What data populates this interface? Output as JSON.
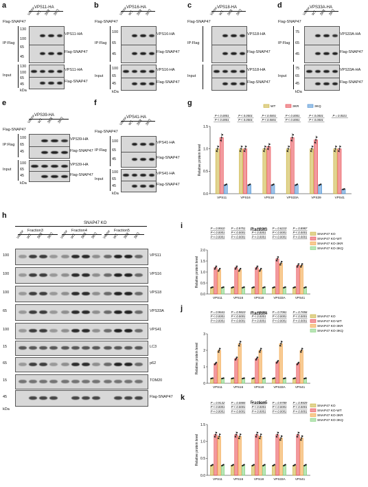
{
  "panel_a": {
    "letter": "a",
    "header": "VPS11-HA",
    "flag_row": "Flag-SNAP47",
    "lanes": [
      "Vector",
      "WT",
      "3KR",
      "3KQ"
    ],
    "ip_label": "IP:Flag",
    "input_label": "Input",
    "kda": "kDa",
    "mw": [
      "130",
      "100",
      "65",
      "45",
      "130",
      "100",
      "65",
      "45"
    ],
    "bands": [
      "VPS11-HA",
      "Flag-SNAP47",
      "VPS11-HA",
      "Flag-SNAP47"
    ]
  },
  "panel_b": {
    "letter": "b",
    "header": "VPS16-HA",
    "flag_row": "Flag-SNAP47",
    "lanes": [
      "Vector",
      "WT",
      "3KR",
      "3KQ"
    ],
    "ip_label": "IP:Flag",
    "input_label": "Input",
    "kda": "kDa",
    "mw": [
      "100",
      "65",
      "45",
      "100",
      "65",
      "45"
    ],
    "bands": [
      "VPS16-HA",
      "Flag-SNAP47",
      "VPS16-HA",
      "Flag-SNAP47"
    ]
  },
  "panel_c": {
    "letter": "c",
    "header": "VPS18-HA",
    "flag_row": "Flag-SNAP47",
    "lanes": [
      "Vector",
      "WT",
      "3KR",
      "3KQ"
    ],
    "ip_label": "IP:Flag",
    "input_label": "Input",
    "bands": [
      "VPS18-HA",
      "Flag-SNAP47",
      "VPS18-HA",
      "Flag-SNAP47"
    ]
  },
  "panel_d": {
    "letter": "d",
    "header": "VPS33A-HA",
    "flag_row": "Flag-SNAP47",
    "lanes": [
      "Vector",
      "WT",
      "3KR",
      "3KQ"
    ],
    "ip_label": "IP:Flag",
    "input_label": "Input",
    "kda": "kDa",
    "mw": [
      "75",
      "65",
      "45",
      "75",
      "65",
      "45"
    ],
    "bands": [
      "VPS33A-HA",
      "Flag-SNAP47",
      "VPS33A-HA",
      "Flag-SNAP47"
    ]
  },
  "panel_e": {
    "letter": "e",
    "header": "VPS39-HA",
    "flag_row": "Flag-SNAP47",
    "lanes": [
      "Vector",
      "WT",
      "3KR",
      "3KQ"
    ],
    "ip_label": "IP:Flag",
    "input_label": "Input",
    "kda": "kDa",
    "mw": [
      "100",
      "65",
      "45",
      "100",
      "65",
      "45"
    ],
    "bands": [
      "VPS39-HA",
      "Flag-SNAP47",
      "VPS39-HA",
      "Flag-SNAP47"
    ]
  },
  "panel_f": {
    "letter": "f",
    "header": "VPS41-HA",
    "flag_row": "Flag-SNAP47",
    "lanes": [
      "Vector",
      "WT",
      "3KR",
      "3KQ"
    ],
    "ip_label": "IP:Flag",
    "input_label": "Input",
    "kda": "kDa",
    "mw": [
      "100",
      "65",
      "45",
      "100",
      "65",
      "45"
    ],
    "bands": [
      "VPS41-HA",
      "Flag-SNAP47",
      "VPS41-HA",
      "Flag-SNAP47"
    ]
  },
  "panel_h": {
    "letter": "h",
    "header": "SNAP47 KO",
    "groups": [
      "Fraction3",
      "Fraction4",
      "Fraction5"
    ],
    "lanes": [
      "Vector",
      "WT",
      "3KR",
      "3KQ"
    ],
    "kda": "kDa",
    "mw": [
      "100",
      "100",
      "100",
      "65",
      "100",
      "15",
      "65",
      "15",
      "45"
    ],
    "bands": [
      "VPS11",
      "VPS16",
      "VPS18",
      "VPS33A",
      "VPS41",
      "LC3",
      "p62",
      "TOM20",
      "Flag-SNAP47"
    ]
  },
  "chart_data": [
    {
      "panel": "g",
      "type": "bar",
      "title": "",
      "ylabel": "Relative protein level",
      "categories": [
        "VPS11",
        "VPS16",
        "VPS18",
        "VPS33A",
        "VPS39",
        "VPS41"
      ],
      "ylim": [
        0,
        1.5
      ],
      "yticks": [
        "0.0",
        "0.5",
        "1.0",
        "1.5"
      ],
      "series": [
        {
          "name": "WT",
          "color": "#c9b037",
          "values": [
            1.0,
            1.0,
            1.0,
            1.0,
            1.0,
            1.0
          ]
        },
        {
          "name": "3KR",
          "color": "#e8474f",
          "values": [
            1.25,
            1.0,
            1.05,
            1.25,
            1.2,
            1.0
          ]
        },
        {
          "name": "3KQ",
          "color": "#4a8fd4",
          "values": [
            0.2,
            0.2,
            0.2,
            0.2,
            0.2,
            0.1
          ]
        }
      ],
      "annotations": [
        "P < 0.0001",
        "P < 0.0001",
        "P < 0.0001",
        "P < 0.0001",
        "P < 0.0001",
        "P < 0.0001",
        "P < 0.0001",
        "P < 0.0001",
        "P < 0.0001",
        "P < 0.0001",
        "P = 0.0021"
      ]
    },
    {
      "panel": "i",
      "type": "bar",
      "title": "Fraction3",
      "ylabel": "Relative protein level",
      "categories": [
        "VPS11",
        "VPS16",
        "VPS18",
        "VPS33A",
        "VPS41"
      ],
      "ylim": [
        0,
        2.0
      ],
      "yticks": [
        "0.0",
        "0.5",
        "1.0",
        "1.5",
        "2.0"
      ],
      "series": [
        {
          "name": "SNAP47 KO",
          "color": "#c9b037",
          "values": [
            0.3,
            0.3,
            0.3,
            0.3,
            0.3
          ]
        },
        {
          "name": "SNAP47 KO-WT",
          "color": "#e8474f",
          "values": [
            1.2,
            1.2,
            1.2,
            1.6,
            1.3
          ]
        },
        {
          "name": "SNAP47 KO-3KR",
          "color": "#f2a03d",
          "values": [
            1.1,
            1.1,
            1.1,
            1.4,
            1.3
          ]
        },
        {
          "name": "SNAP47 KO-3KQ",
          "color": "#7fd07a",
          "values": [
            0.3,
            0.3,
            0.3,
            0.3,
            0.3
          ]
        }
      ],
      "annotations": [
        "P = 0.9910",
        "P < 0.0001",
        "P < 0.0001",
        "P = 0.9751",
        "P < 0.0001",
        "P < 0.0001",
        "P = 0.9766",
        "P < 0.0001",
        "P < 0.0001",
        "P = 0.6210",
        "P < 0.0001",
        "P < 0.0001",
        "P = 0.8987",
        "P < 0.0001",
        "P < 0.0001"
      ]
    },
    {
      "panel": "j",
      "type": "bar",
      "title": "Fraction4",
      "ylabel": "Relative protein level",
      "categories": [
        "VPS11",
        "VPS16",
        "VPS18",
        "VPS33A",
        "VPS41"
      ],
      "ylim": [
        0,
        3
      ],
      "yticks": [
        "0",
        "1",
        "2",
        "3"
      ],
      "series": [
        {
          "name": "SNAP47 KO",
          "color": "#c9b037",
          "values": [
            0.3,
            0.3,
            0.3,
            0.3,
            0.3
          ]
        },
        {
          "name": "SNAP47 KO-WT",
          "color": "#e8474f",
          "values": [
            1.2,
            1.5,
            1.5,
            1.3,
            1.2
          ]
        },
        {
          "name": "SNAP47 KO-3KR",
          "color": "#f2a03d",
          "values": [
            2.0,
            2.4,
            2.0,
            2.4,
            2.0
          ]
        },
        {
          "name": "SNAP47 KO-3KQ",
          "color": "#7fd07a",
          "values": [
            0.3,
            0.3,
            0.3,
            0.3,
            0.3
          ]
        }
      ],
      "annotations": [
        "P = 0.9641",
        "P < 0.0001",
        "P < 0.0001",
        "P = 0.9810",
        "P < 0.0001",
        "P < 0.0001",
        "P = 0.9999",
        "P < 0.0001",
        "P < 0.0001",
        "P = 0.7061",
        "P < 0.0001",
        "P < 0.0001",
        "P = 0.7656",
        "P < 0.0001",
        "P < 0.0001"
      ]
    },
    {
      "panel": "k",
      "type": "bar",
      "title": "Fraction5",
      "ylabel": "Relative protein level",
      "categories": [
        "VPS11",
        "VPS16",
        "VPS18",
        "VPS33A",
        "VPS41"
      ],
      "ylim": [
        0,
        1.5
      ],
      "yticks": [
        "0.0",
        "0.5",
        "1.0",
        "1.5"
      ],
      "series": [
        {
          "name": "SNAP47 KO",
          "color": "#c9b037",
          "values": [
            0.3,
            0.3,
            0.3,
            0.3,
            0.3
          ]
        },
        {
          "name": "SNAP47 KO-WT",
          "color": "#e8474f",
          "values": [
            1.2,
            1.2,
            1.2,
            1.2,
            1.2
          ]
        },
        {
          "name": "SNAP47 KO-3KR",
          "color": "#f2a03d",
          "values": [
            1.15,
            1.15,
            1.15,
            1.1,
            1.1
          ]
        },
        {
          "name": "SNAP47 KO-3KQ",
          "color": "#7fd07a",
          "values": [
            0.3,
            0.3,
            0.3,
            0.3,
            0.3
          ]
        }
      ],
      "annotations": [
        "P = 0.9132",
        "P < 0.0001",
        "P < 0.0001",
        "P = 0.0865",
        "P < 0.0001",
        "P < 0.0001",
        "P = 0.8429",
        "P < 0.0001",
        "P < 0.0001",
        "P = 0.9789",
        "P < 0.0001",
        "P < 0.0001",
        "P = 0.9929",
        "P < 0.0001",
        "P < 0.0001"
      ]
    }
  ]
}
